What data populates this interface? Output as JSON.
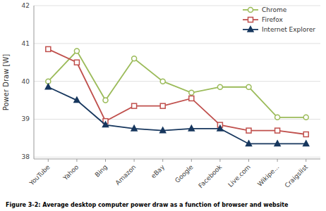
{
  "chart_data": {
    "type": "line",
    "caption": "Figure 3-2: Average desktop computer power draw as a function of browser and website",
    "y_label": "Power Draw [W]",
    "categories": [
      "YouTube",
      "Yahoo",
      "Bing",
      "Amazon",
      "eBay",
      "Google",
      "Facebook",
      "Live.com",
      "Wikipe...",
      "Craigslist"
    ],
    "series": [
      {
        "name": "Chrome",
        "color": "#9bbb59",
        "marker": "circle-open",
        "values": [
          40.0,
          40.8,
          39.5,
          40.6,
          40.0,
          39.7,
          39.85,
          39.85,
          39.05,
          39.05
        ]
      },
      {
        "name": "Firefox",
        "color": "#c0504d",
        "marker": "square-open",
        "values": [
          40.85,
          40.5,
          38.95,
          39.35,
          39.35,
          39.55,
          38.85,
          38.7,
          38.7,
          38.6
        ]
      },
      {
        "name": "Internet Explorer",
        "color": "#17375e",
        "marker": "triangle",
        "values": [
          39.85,
          39.5,
          38.85,
          38.75,
          38.7,
          38.75,
          38.75,
          38.35,
          38.35,
          38.35
        ]
      }
    ],
    "ylim": [
      37.95,
      42
    ],
    "yticks": [
      38,
      39,
      40,
      41,
      42
    ],
    "grid": true,
    "legend": "upper-right"
  }
}
